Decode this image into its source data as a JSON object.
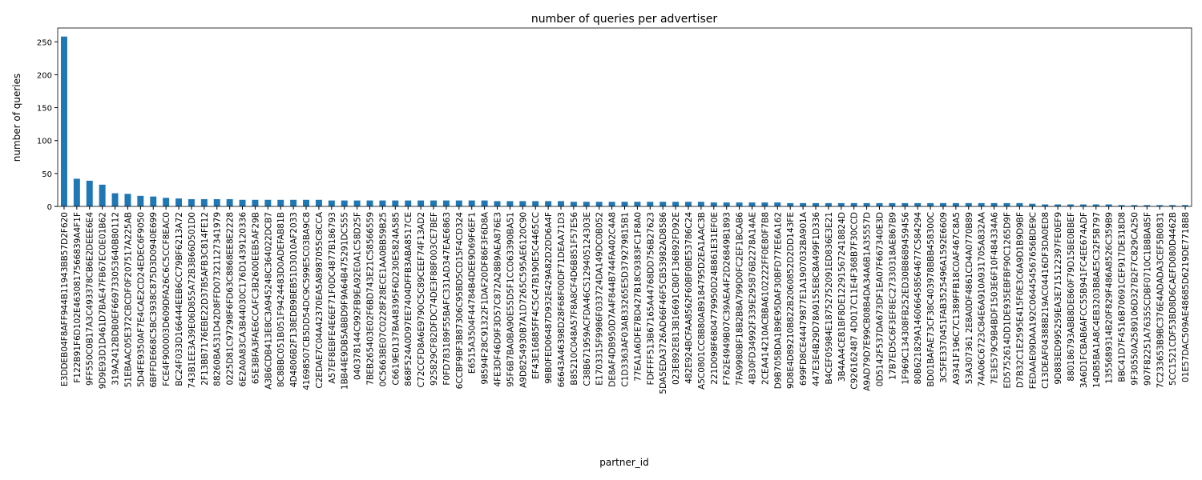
{
  "chart_data": {
    "type": "bar",
    "title": "number of queries per advertiser",
    "x_label": "partner_id",
    "y_label": "number of queries",
    "color": "#1f77b4",
    "categories": [
      "E3DDEB04F8AFF944B11943BB57D2F620",
      "F122B91F6D102E4630817566839A4F1F",
      "9FF550C0B17A3C493378CB6E2DEEE6E4",
      "9D9E93D1D461D7BAE47FB67EC0E01B62",
      "319A2412BDB0EF669733053640B80112",
      "51EBAAC05E372CBCDF0F207517A225AB",
      "5D4FE9350AF7E4CAE2CD24EDEC6F9050",
      "6BFFDE668C5BC3938C875D3D0940E699",
      "FCE4F900003D609DFA26C6C5CCF8EAC0",
      "BC24F033D166444EEB6CC79BF6213A72",
      "743B1EE3A39E06D855A72B3B66D501D0",
      "2F13BB7176EBE22D37B5AFB3C814FE12",
      "88260BA531D42D8FFD07321127341979",
      "0225D81C97298F6FD63C8868EE8E2228",
      "6E2A0A83CA3B44030C176D1439120336",
      "65E3BFA3FAE6CCAFC3B2600EEB5AF29B",
      "A3B6CDB413E8C3A945248C364022DCB7",
      "8C8BBC051B051F9424483D0ADEFAB81B",
      "4D4806B2F138EDB9BEB51D3010AF2033",
      "41698507CB5DD54DC9C599E5C03BA9C8",
      "C2EDAE7C04A42370EA5A8987055C8CCA",
      "A57EF8EBFE4E6EF71F0DC4877B186793",
      "1BB44E9DB5ABBD9F9A64B475291DC555",
      "040378144C992FB9EA92E0A1C58D25F",
      "7BEB265403E02F6BD743E21C58566559",
      "0C5663BE07C0228F28ECE1AA0BB59B25",
      "C6619E0137BA48395F6D230E5824A585",
      "868F524A0D97EE7404DFFB3ABA8517CE",
      "C72CCFD8A6E9790C5C89CEEF74F13AD2",
      "925829CF82DFDC74DE3F88F003CE7BEF",
      "F0FD783189F55BAFC331AD347EAE6863",
      "6CCBF9BF3B87306C95BD5CD15F4CD324",
      "E6515A3504F44784B4DEE9D69F6EF1",
      "98594F28C91322F1DAF20DF86F3F6D8A",
      "4FE3DF46D9F3D57C872A28B9AEA876E3",
      "95F6B7BA0BA90E55D5F1CC063390BA51",
      "A9D8254930B7A1D7265C595AE6120C90",
      "EF43E16885FF4C5C47B190E5C4465CC",
      "9BB0FED06487D932E429A82D2DD6A4F",
      "66643A46398D28F68F00DF71DEAA71D3",
      "B85210C048A57F8A8CF4D6B851F57E56",
      "C38B671959ACFDA46C5129405124303E",
      "E1703315F9986F033724DA149DC0B052",
      "DE8AF4DB950D7A4F844B744FA402C4A8",
      "C1D3363AF03AB33265E5D379279815B1",
      "77EA1A6DFE7BD427B18C9383FC1F8A0",
      "FDFFFF513B67165A44768DD756B27623",
      "5DA5EDA3726AD66F46F5CB53982AD8586",
      "023E892E813B16691CB0F136B92FD92E",
      "482E924BCFAA8562F60BF0BE53786C24",
      "A5C0801CC8B80AB9184795D2EA1AAC3B",
      "221D098F6804779950D24B861E31EF0E",
      "F762E4949B07C39AEA4F2D26849B1893",
      "7FA9980BF18B2B8A799D0FC2EF1BCAB6",
      "4B30FD34992F339E295876B2278A14AE",
      "2CEA414210ACBBA6102222FF0E80F7B8",
      "D9B705BDA1B9E95DAF30BFD77EE6A162",
      "9D8E4D89210B822B2060852D2DD143FE",
      "699FD8CE44479877E1A1907032BA901A",
      "447E3E4B29D78A9155E8C8A499F1D336",
      "B4CEF05984E18752752091ED836E3E21",
      "3B4AA4CE81BF8DE122915672418824D",
      "C926162487 4D017C11E4F368B7F30CCD",
      "A9AD79D7E99CB08B4DA34A6B1A35557D",
      "0D5142F537DA673DF1EA07F667340E3D",
      "17B7ED5C6F3EF8EC27330318AE867B9",
      "1F969C134308FB252ED30B8689459456",
      "80B621829A146066458564677C584294",
      "BD01BAFAE73CF38C403978BBB458300C",
      "3C5FE3370451FAB3525496A1592E6609",
      "A9341F196C7C1389FFB18C0AF467C8A5",
      "53A307361 2E8A0DF4861CD4A0770B89",
      "74A06C6723C84E6A910A931705A832AA",
      "7E3E579C9B4BDF1503E6F10F484334A6",
      "ED5752614DD1DE935EBFBF90C1265D9F",
      "D7B32C1E2595E415F0E3C6A9D1B9D9BF",
      "FEDAAE09DAA192C064454567656BDE9C",
      "C13DEAF04388B219AC04416DF3DA0ED8",
      "9D883ED995259EA3E715122397FE0EF9",
      "880186793ABB8DE860F79D15BE0BBEF",
      "3A6D1FCBAB6AFCC55B941FC4EE674ADF",
      "14DB5BA1A8C4EB3203B8AE5C32F5B797",
      "1355689314B20F829F486A8526C359B9",
      "BBC41D7F4516B70691CEF917DE318D8",
      "9F30550A2589106D327B2F7C829CA250",
      "907F82251A76355CDBF0710C1B8BA85F",
      "7C233653B9BC376E4ADADA3CEF5B0831",
      "5CC1521CDF53BD8D6CAEFD080D4462B",
      "01E57DAC509AE48685D6219DE7718B8"
    ],
    "values": [
      258,
      42,
      39,
      33,
      20,
      19,
      16,
      15,
      13,
      12,
      11,
      11,
      11,
      11,
      10,
      10,
      10,
      10,
      10,
      10,
      10,
      9,
      9,
      9,
      9,
      9,
      9,
      9,
      9,
      9,
      9,
      9,
      9,
      9,
      8,
      8,
      8,
      8,
      8,
      8,
      7,
      7,
      7,
      7,
      7,
      7,
      7,
      7,
      7,
      7,
      7,
      6,
      6,
      6,
      6,
      6,
      6,
      5,
      5,
      5,
      5,
      5,
      5,
      5,
      5,
      5,
      5,
      5,
      5,
      5,
      5,
      5,
      5,
      5,
      5,
      5,
      4,
      3,
      3,
      3,
      3,
      3,
      3,
      2,
      2,
      2,
      2,
      2,
      2
    ],
    "ylim": [
      0,
      271
    ],
    "yticks": [
      0,
      50,
      100,
      150,
      200,
      250
    ]
  }
}
